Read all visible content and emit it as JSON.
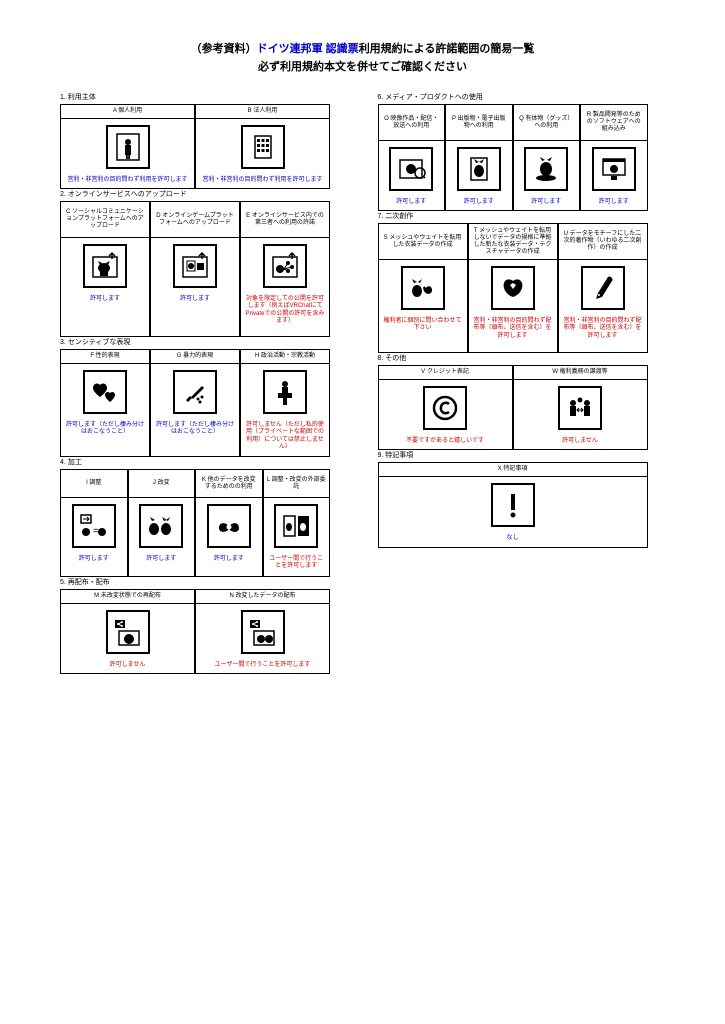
{
  "title_prefix": "（参考資料）",
  "title_highlight": "ドイツ連邦軍 認識票",
  "title_suffix": "利用規約による許諾範囲の簡易一覧",
  "subtitle": "必ず利用規約本文を併せてご確認ください",
  "colors": {
    "link": "#0000cc",
    "red": "#cc0000"
  },
  "sections": {
    "s1": {
      "title": "1.  利用主体",
      "cells": [
        {
          "h": "A  個人利用",
          "status": "営利・非営利の目的問わず利用を許可します",
          "icon": "person",
          "status_color": "link"
        },
        {
          "h": "B  法人利用",
          "status": "営利・非営利の目的問わず利用を許可します",
          "icon": "building",
          "status_color": "link"
        }
      ]
    },
    "s2": {
      "title": "2.  オンラインサービスへのアップロード",
      "cells": [
        {
          "h": "C  ソーシャルコミュニケーションプラットフォームへのアップロード",
          "status": "許可します",
          "icon": "upload-cat",
          "status_color": "link"
        },
        {
          "h": "D  オンラインゲームプラットフォームへのアップロード",
          "status": "許可します",
          "icon": "upload-game",
          "status_color": "link"
        },
        {
          "h": "E  オンラインサービス内での第三者への利用の許諾",
          "status": "対象を限定しての公開を許可します（例えばVRChatにてPrivateでの公開の許可を含みます）",
          "icon": "upload-group",
          "status_color": "red"
        }
      ]
    },
    "s3": {
      "title": "3.  センシティブな表現",
      "cells": [
        {
          "h": "F  性的表現",
          "status": "許可します（ただし棲み分けはおこなうこと）",
          "icon": "hearts",
          "status_color": "link"
        },
        {
          "h": "G  暴力的表現",
          "status": "許可します（ただし棲み分けはおこなうこと）",
          "icon": "knife",
          "status_color": "link"
        },
        {
          "h": "H  政治活動・宗教活動",
          "status": "許可しません（ただし私的使用（プライベートな範囲での利用）については禁止しません）",
          "icon": "podium",
          "status_color": "red"
        }
      ]
    },
    "s4": {
      "title": "4.  加工",
      "cells": [
        {
          "h": "I  調整",
          "status": "許可します",
          "icon": "adjust",
          "status_color": "link"
        },
        {
          "h": "J  改変",
          "status": "許可します",
          "icon": "modify",
          "status_color": "link"
        },
        {
          "h": "K  他のデータを改変するためのの利用",
          "status": "許可します",
          "icon": "bow",
          "status_color": "link"
        },
        {
          "h": "L  調整・改変の外部委託",
          "status": "ユーザー間で行うことを許可します",
          "icon": "outsource",
          "status_color": "red"
        }
      ]
    },
    "s5": {
      "title": "5.  再配布・配布",
      "cells": [
        {
          "h": "M  未改変状態での再配布",
          "status": "許可しません",
          "icon": "redist",
          "status_color": "red"
        },
        {
          "h": "N  改変したデータの配布",
          "status": "ユーザー間で行うことを許可します",
          "icon": "dist-mod",
          "status_color": "red"
        }
      ]
    },
    "s6": {
      "title": "6.  メディア・プロダクトへの使用",
      "cells": [
        {
          "h": "O  映像作品・配信・放送への利用",
          "status": "許可します",
          "icon": "video",
          "status_color": "link"
        },
        {
          "h": "P  出版物・電子出版物への利用",
          "status": "許可します",
          "icon": "book",
          "status_color": "link"
        },
        {
          "h": "Q  有体物（グッズ）への利用",
          "status": "許可します",
          "icon": "goods",
          "status_color": "link"
        },
        {
          "h": "R  製品開発等のためのソフトウェアへの組み込み",
          "status": "許可します",
          "icon": "software",
          "status_color": "link"
        }
      ]
    },
    "s7": {
      "title": "7.  二次創作",
      "cells": [
        {
          "h": "S  メッシュやウェイトを転用した衣装データの作成",
          "status": "権利者に個別に問い合わせて下さい",
          "icon": "clothes1",
          "status_color": "red"
        },
        {
          "h": "T  メッシュやウェイトを転用しないでデータの規格に準拠した新たな衣装データ・テクスチャデータの作成",
          "status": "営利・非営利の目的問わず配布等（頒布、送信を含む）を許可します",
          "icon": "clothes2",
          "status_color": "red"
        },
        {
          "h": "U  データをモチーフにした二次的著作物（いわゆる二次創作）の作成",
          "status": "営利・非営利の目的問わず配布等（頒布、送信を含む）を許可します",
          "icon": "pen",
          "status_color": "red"
        }
      ]
    },
    "s8": {
      "title": "8.  その他",
      "cells": [
        {
          "h": "V  クレジット表記",
          "status": "不要ですがあると嬉しいです",
          "icon": "copyright",
          "status_color": "red"
        },
        {
          "h": "W  権利義務の譲渡等",
          "status": "許可しません",
          "icon": "transfer",
          "status_color": "red"
        }
      ]
    },
    "s9": {
      "title": "9.  特記事項",
      "cells": [
        {
          "h": "X  特記事項",
          "status": "なし",
          "icon": "exclaim",
          "status_color": "link"
        }
      ]
    }
  }
}
